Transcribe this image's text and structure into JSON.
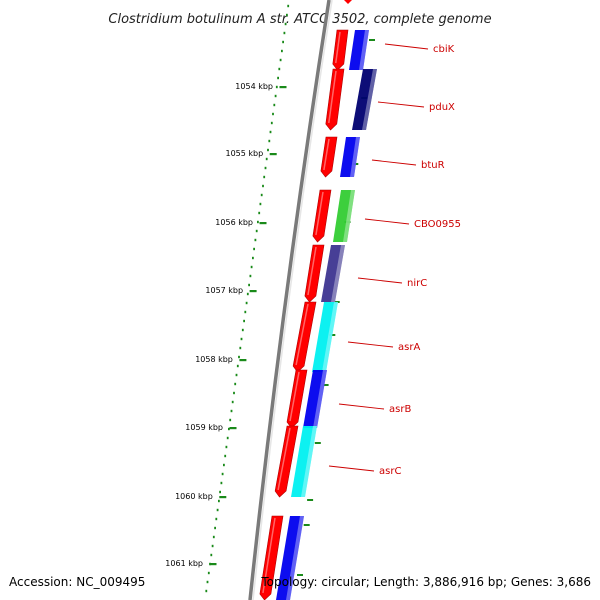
{
  "title": "Clostridium botulinum A str. ATCC 3502, complete genome",
  "footer": {
    "accession": "Accession: NC_009495",
    "summary": "Topology: circular; Length: 3,886,916 bp; Genes: 3,686"
  },
  "ticks": [
    {
      "label": "1054 kbp"
    },
    {
      "label": "1055 kbp"
    },
    {
      "label": "1056 kbp"
    },
    {
      "label": "1057 kbp"
    },
    {
      "label": "1058 kbp"
    },
    {
      "label": "1059 kbp"
    },
    {
      "label": "1060 kbp"
    },
    {
      "label": "1061 kbp"
    }
  ],
  "genes": [
    {
      "name": "cbiK",
      "cds_color": "#ff0000",
      "cog_color": "#0000ee"
    },
    {
      "name": "pduX",
      "cds_color": "#ff0000",
      "cog_color": "#000070"
    },
    {
      "name": "btuR",
      "cds_color": "#ff0000",
      "cog_color": "#0000ee"
    },
    {
      "name": "CBO0955",
      "cds_color": "#ff0000",
      "cog_color": "#33cc33"
    },
    {
      "name": "nirC",
      "cds_color": "#ff0000",
      "cog_color": "#3d3590"
    },
    {
      "name": "asrA",
      "cds_color": "#ff0000",
      "cog_color": "#00f0f0"
    },
    {
      "name": "asrB",
      "cds_color": "#ff0000",
      "cog_color": "#0000ee"
    },
    {
      "name": "asrC",
      "cds_color": "#ff0000",
      "cog_color": "#00f0f0"
    },
    {
      "name": "",
      "cds_color": "#ff0000",
      "cog_color": "#0000ee"
    }
  ],
  "colors": {
    "backbone": "#7a7a7a",
    "gc_skew_dots": "#1a8a1a",
    "label_color": "#cc0000"
  }
}
